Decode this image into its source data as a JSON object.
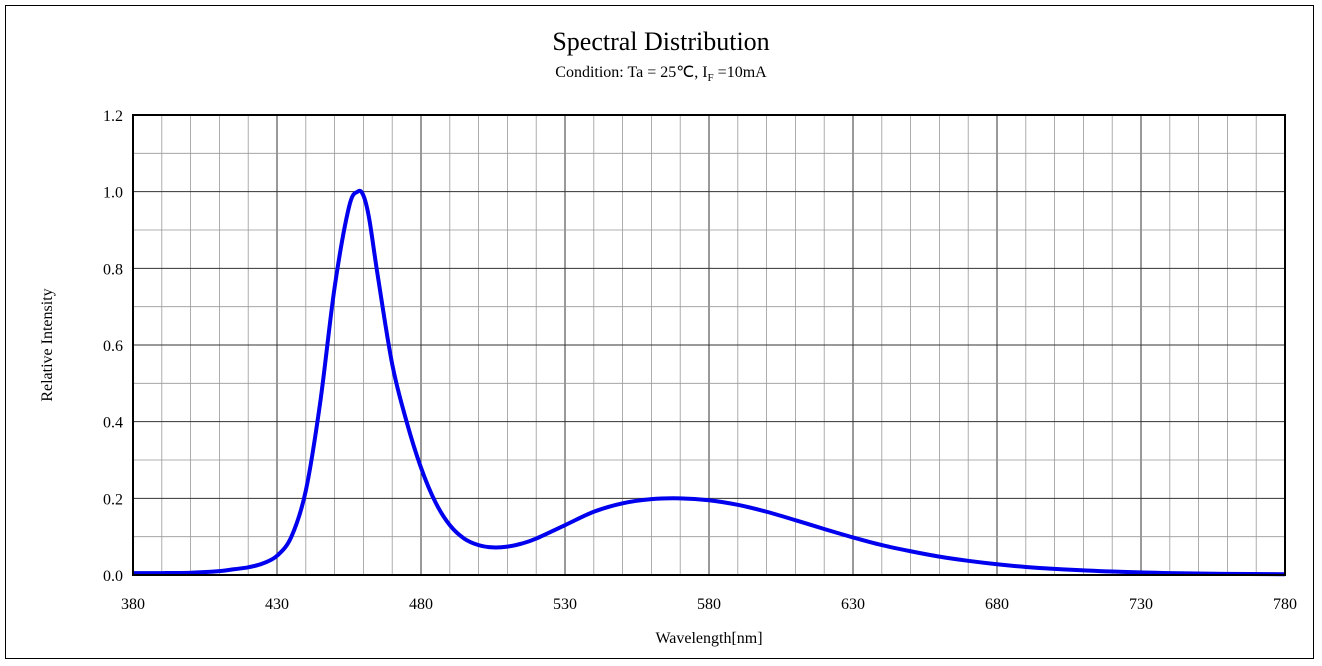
{
  "chart_data": {
    "type": "line",
    "title": "Spectral Distribution",
    "subtitle": {
      "prefix": "Condition: Ta = 25℃, I",
      "sub": "F",
      "suffix": " =10mA"
    },
    "xlabel": "Wavelength[nm]",
    "ylabel": "Relative Intensity",
    "xlim": [
      380,
      780
    ],
    "ylim": [
      0,
      1.2
    ],
    "x_ticks": [
      380,
      430,
      480,
      530,
      580,
      630,
      680,
      730,
      780
    ],
    "y_ticks": [
      "0.0",
      "0.2",
      "0.4",
      "0.6",
      "0.8",
      "1.0",
      "1.2"
    ],
    "grid": true,
    "grid_minor_x_step": 10,
    "grid_minor_y_step": 0.1,
    "line_color": "#0000ee",
    "series": [
      {
        "x": [
          380,
          390,
          400,
          410,
          415,
          420,
          425,
          430,
          435,
          440,
          445,
          450,
          455,
          458,
          460,
          462,
          465,
          470,
          475,
          480,
          485,
          490,
          495,
          500,
          505,
          510,
          515,
          520,
          530,
          540,
          550,
          560,
          570,
          580,
          590,
          600,
          610,
          620,
          630,
          640,
          650,
          660,
          670,
          680,
          690,
          700,
          720,
          740,
          760,
          780
        ],
        "y": [
          0.005,
          0.005,
          0.006,
          0.01,
          0.015,
          0.02,
          0.03,
          0.05,
          0.1,
          0.22,
          0.45,
          0.75,
          0.96,
          1.0,
          0.99,
          0.93,
          0.78,
          0.55,
          0.4,
          0.28,
          0.19,
          0.13,
          0.095,
          0.078,
          0.072,
          0.074,
          0.082,
          0.095,
          0.13,
          0.165,
          0.187,
          0.198,
          0.2,
          0.195,
          0.183,
          0.165,
          0.143,
          0.12,
          0.098,
          0.078,
          0.062,
          0.048,
          0.037,
          0.028,
          0.021,
          0.016,
          0.009,
          0.005,
          0.003,
          0.002
        ]
      }
    ]
  }
}
